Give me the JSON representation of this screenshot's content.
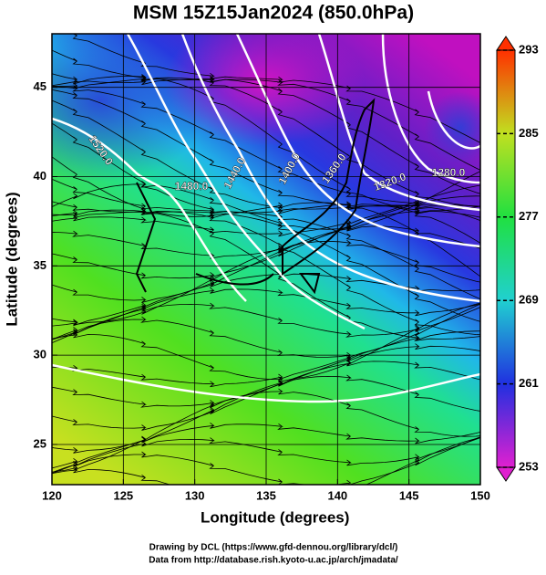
{
  "chart_data": {
    "type": "map",
    "title": "MSM 15Z15Jan2024 (850.0hPa)",
    "xlabel": "Longitude (degrees)",
    "ylabel": "Latitude  (degrees)",
    "xlim": [
      120,
      150
    ],
    "xticks": [
      120,
      125,
      130,
      135,
      140,
      145,
      150
    ],
    "ylim": [
      22.75,
      48
    ],
    "yticks": [
      25,
      30,
      35,
      40,
      45
    ],
    "grid": true,
    "colorbar": {
      "lim": [
        253,
        293
      ],
      "ticks": [
        253,
        261,
        269,
        277,
        285,
        293
      ],
      "colors": [
        "#e020d0",
        "#2030e0",
        "#20d0d0",
        "#20e040",
        "#c0e020",
        "#ff3000"
      ]
    },
    "contour_labels": [
      "1520.0",
      "1480.0",
      "1440.0",
      "1400.0",
      "1360.0",
      "1320.0",
      "1280.0"
    ],
    "footer": [
      "Drawing by DCL (https://www.gfd-dennou.org/library/dcl/)",
      "Data from http://database.rish.kyoto-u.ac.jp/arch/jmadata/"
    ]
  }
}
